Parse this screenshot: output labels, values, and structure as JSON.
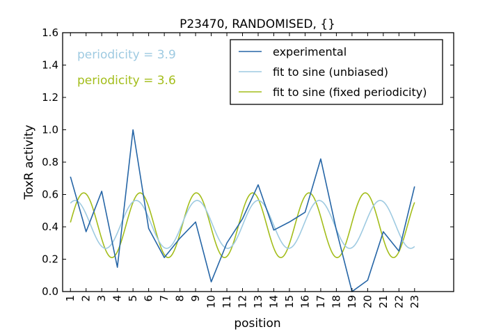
{
  "chart_data": {
    "type": "line",
    "title": "P23470, RANDOMISED, {}",
    "xlabel": "position",
    "ylabel": "ToxR activity",
    "xlim": [
      0.5,
      25.5
    ],
    "ylim": [
      0.0,
      1.6
    ],
    "x_ticks": [
      1,
      2,
      3,
      4,
      5,
      6,
      7,
      8,
      9,
      10,
      11,
      12,
      13,
      14,
      15,
      16,
      17,
      18,
      19,
      20,
      21,
      22,
      23
    ],
    "y_ticks": [
      "0.0",
      "0.2",
      "0.4",
      "0.6",
      "0.8",
      "1.0",
      "1.2",
      "1.4",
      "1.6"
    ],
    "grid": false,
    "legend_position": "top-right",
    "series": [
      {
        "name": "experimental",
        "color": "#2565a6",
        "kind": "points",
        "x": [
          1,
          2,
          3,
          4,
          5,
          6,
          7,
          8,
          9,
          10,
          11,
          12,
          13,
          14,
          15,
          16,
          17,
          18,
          19,
          20,
          21,
          22,
          23
        ],
        "y": [
          0.71,
          0.37,
          0.62,
          0.15,
          1.0,
          0.39,
          0.21,
          0.33,
          0.43,
          0.06,
          0.3,
          0.45,
          0.66,
          0.38,
          0.43,
          0.49,
          0.82,
          0.38,
          0.0,
          0.07,
          0.37,
          0.25,
          0.65
        ]
      },
      {
        "name": "fit to sine (unbiased)",
        "color": "#9ecae1",
        "kind": "sine",
        "periodicity": 3.9,
        "offset": 0.415,
        "amplitude": 0.148,
        "peak_x": 1.3,
        "x_range": [
          1,
          23
        ]
      },
      {
        "name": "fit to sine (fixed periodicity)",
        "color": "#a3bd1a",
        "kind": "sine",
        "periodicity": 3.6,
        "offset": 0.41,
        "amplitude": 0.2,
        "peak_x": 1.85,
        "x_range": [
          1,
          23
        ]
      }
    ],
    "annotations": [
      {
        "text": "periodicity = 3.9",
        "color": "#9ecae1"
      },
      {
        "text": "periodicity = 3.6",
        "color": "#a3bd1a"
      }
    ]
  }
}
